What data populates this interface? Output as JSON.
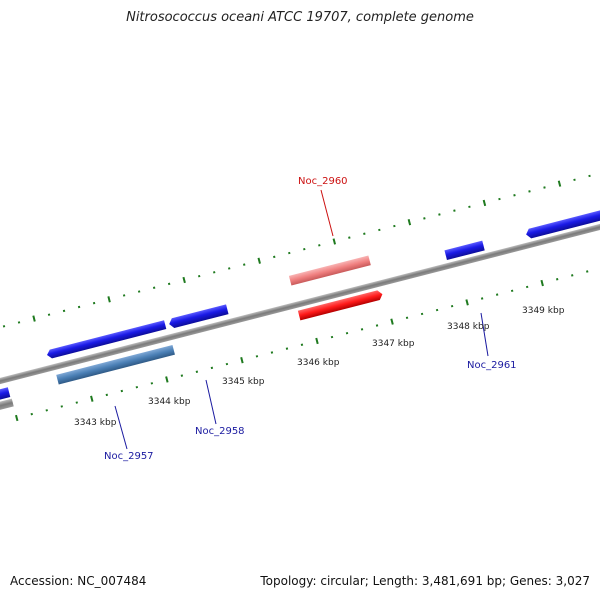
{
  "title": "Nitrosococcus oceani ATCC 19707, complete genome",
  "accession_label": "Accession: NC_007484",
  "summary_label": "Topology: circular; Length: 3,481,691 bp; Genes: 3,027",
  "kbp_labels": [
    "3343 kbp",
    "3344 kbp",
    "3345 kbp",
    "3346 kbp",
    "3347 kbp",
    "3348 kbp",
    "3349 kbp"
  ],
  "gene_labels": {
    "noc_2957": "Noc_2957",
    "noc_2958": "Noc_2958",
    "noc_2960": "Noc_2960",
    "noc_2961": "Noc_2961"
  },
  "colors": {
    "backbone": "#8a8a8a",
    "tick": "#1f7a1f",
    "cds_blue": "#1a1ae6",
    "cds_steel": "#4a7fb5",
    "cds_red": "#ff1a1a",
    "cds_pink": "#f08080",
    "label_blue": "#1a1aa0",
    "label_red": "#cc1111"
  }
}
